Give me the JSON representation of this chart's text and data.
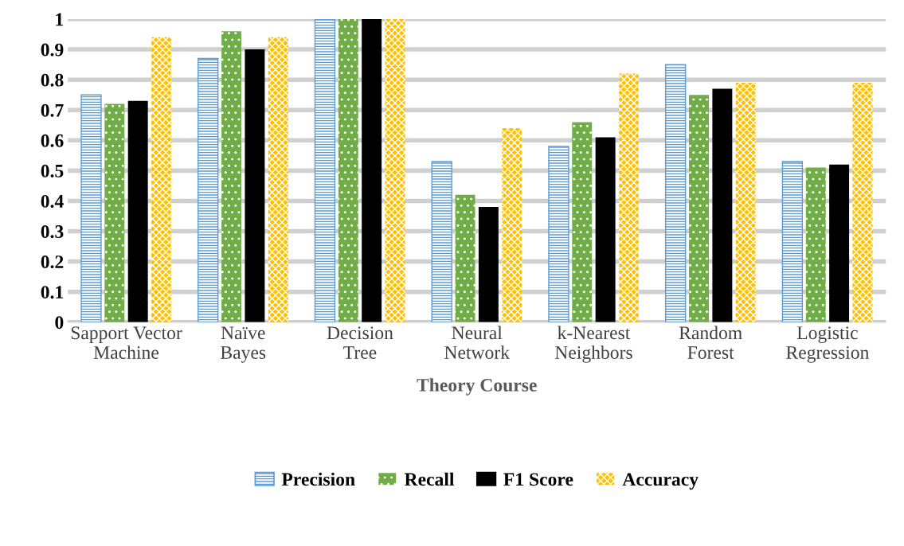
{
  "chart_data": {
    "type": "bar",
    "xlabel": "Theory Course",
    "categories": [
      "Sapport Vector\nMachine",
      "Naïve\nBayes",
      "Decision\nTree",
      "Neural\nNetwork",
      "k-Nearest\nNeighbors",
      "Random\nForest",
      "Logistic\nRegression"
    ],
    "series": [
      {
        "name": "Precision",
        "color": "#5b9bd5",
        "values": [
          0.75,
          0.87,
          1.0,
          0.53,
          0.58,
          0.85,
          0.53
        ]
      },
      {
        "name": "Recall",
        "color": "#70ad47",
        "values": [
          0.72,
          0.96,
          1.0,
          0.42,
          0.66,
          0.75,
          0.51
        ]
      },
      {
        "name": "F1 Score",
        "color": "#000000",
        "values": [
          0.73,
          0.9,
          1.0,
          0.38,
          0.61,
          0.77,
          0.52
        ]
      },
      {
        "name": "Accuracy",
        "color": "#ffc000",
        "values": [
          0.94,
          0.94,
          1.0,
          0.64,
          0.82,
          0.79,
          0.79
        ]
      }
    ],
    "ylim": [
      0,
      1
    ],
    "yticks": [
      0,
      0.1,
      0.2,
      0.3,
      0.4,
      0.5,
      0.6,
      0.7,
      0.8,
      0.9,
      1
    ],
    "grid": "y",
    "legend": "bottom"
  }
}
